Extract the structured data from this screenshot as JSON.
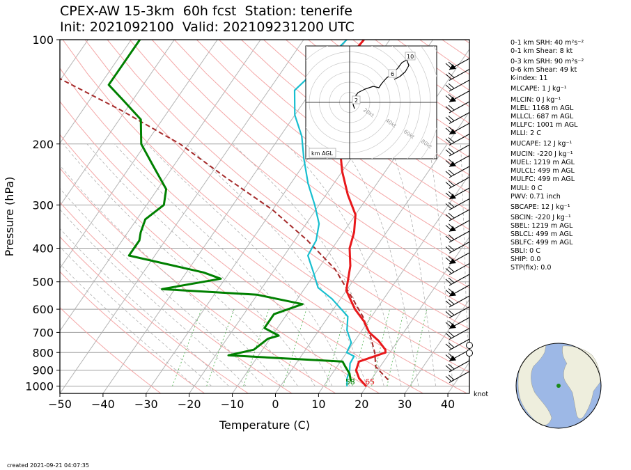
{
  "header": {
    "title_line1": "CPEX-AW 15-3km  60h fcst  Station: tenerife",
    "title_line2": "Init: 2021092100  Valid: 202109231200 UTC"
  },
  "axes": {
    "xlabel": "Temperature (C)",
    "ylabel": "Pressure (hPa)",
    "xticks": [
      "−50",
      "−40",
      "−30",
      "−20",
      "−10",
      "0",
      "10",
      "20",
      "30",
      "40"
    ],
    "xtick_values": [
      -50,
      -40,
      -30,
      -20,
      -10,
      0,
      10,
      20,
      30,
      40
    ],
    "yticks": [
      "100",
      "200",
      "300",
      "400",
      "500",
      "600",
      "700",
      "800",
      "900",
      "1000"
    ],
    "ytick_values": [
      100,
      200,
      300,
      400,
      500,
      600,
      700,
      800,
      900,
      1000
    ],
    "wind_unit": "knot"
  },
  "hodograph": {
    "unit_label": "km AGL",
    "ring_labels": [
      "20kt",
      "40kt",
      "60kt",
      "80kt"
    ],
    "height_marks": [
      "2",
      "6",
      "10"
    ]
  },
  "indices": [
    "0-1 km SRH: 40 m²s⁻²",
    "0-1 km Shear: 8 kt",
    "0-3 km SRH: 90 m²s⁻²",
    "0-6 km Shear: 49 kt",
    "K-index: 11",
    "MLCAPE: 1 J kg⁻¹",
    "MLCIN: 0 J kg⁻¹",
    "MLEL: 1168 m AGL",
    "MLLCL: 687 m AGL",
    "MLLFC: 1001 m AGL",
    "MLLI: 2 C",
    "MUCAPE: 12 J kg⁻¹",
    "MUCIN: -220 J kg⁻¹",
    "MUEL: 1219 m AGL",
    "MULCL: 499 m AGL",
    "MULFC: 499 m AGL",
    "MULI: 0 C",
    "PWV: 0.71 inch",
    "SBCAPE: 12 J kg⁻¹",
    "SBCIN: -220 J kg⁻¹",
    "SBEL: 1219 m AGL",
    "SBLCL: 499 m AGL",
    "SBLFC: 499 m AGL",
    "SBLI: 0 C",
    "SHIP: 0.0",
    "STP(fix): 0.0"
  ],
  "footer": {
    "created": "created 2021-09-21 04:07:35"
  },
  "colors": {
    "temperature": "#e8181b",
    "dewpoint": "#008000",
    "virtual_temp": "#17becf",
    "parcel": "#a52a2a",
    "dry_adiabat": "#f4a6a6",
    "moist_adiabat": "#b0b0b0",
    "mixing_ratio": "#5cb85c",
    "globe_ocean": "#9db8e6",
    "globe_land": "#eeeedd",
    "station_marker": "#1a8a1a"
  },
  "chart_data": {
    "type": "line",
    "title": "CPEX-AW 15-3km  60h fcst  Station: tenerife",
    "xlabel": "Temperature (C)",
    "ylabel": "Pressure (hPa)",
    "xlim": [
      -50,
      45
    ],
    "ylim": [
      1050,
      100
    ],
    "y_scale": "log",
    "skew": true,
    "series": [
      {
        "name": "temperature",
        "points": [
          [
            20,
            1003
          ],
          [
            17,
            950
          ],
          [
            15,
            900
          ],
          [
            14.3,
            850
          ],
          [
            19,
            800
          ],
          [
            18.5,
            785
          ],
          [
            15.5,
            740
          ],
          [
            12,
            700
          ],
          [
            9,
            650
          ],
          [
            5,
            600
          ],
          [
            0,
            530
          ],
          [
            -3,
            450
          ],
          [
            -6,
            400
          ],
          [
            -7.5,
            360
          ],
          [
            -10,
            320
          ],
          [
            -15,
            280
          ],
          [
            -20,
            240
          ],
          [
            -25,
            200
          ],
          [
            -30,
            170
          ],
          [
            -35,
            140
          ],
          [
            -37,
            120
          ],
          [
            -36,
            100
          ]
        ]
      },
      {
        "name": "dewpoint",
        "points": [
          [
            15.6,
            970
          ],
          [
            14,
            920
          ],
          [
            12,
            880
          ],
          [
            10.5,
            850
          ],
          [
            -17,
            815
          ],
          [
            -12,
            785
          ],
          [
            -10.5,
            730
          ],
          [
            -8.5,
            715
          ],
          [
            -13,
            680
          ],
          [
            -13,
            620
          ],
          [
            -8,
            580
          ],
          [
            -20,
            545
          ],
          [
            -43,
            525
          ],
          [
            -31,
            490
          ],
          [
            -36,
            470
          ],
          [
            -56,
            420
          ],
          [
            -56,
            380
          ],
          [
            -57,
            360
          ],
          [
            -58,
            330
          ],
          [
            -56,
            300
          ],
          [
            -58,
            270
          ],
          [
            -65,
            230
          ],
          [
            -71,
            200
          ],
          [
            -75,
            170
          ],
          [
            -82,
            150
          ],
          [
            -88,
            135
          ],
          [
            -88,
            115
          ],
          [
            -88,
            100
          ]
        ]
      },
      {
        "name": "virtual temperature",
        "points": [
          [
            15.5,
            1003
          ],
          [
            14.2,
            950
          ],
          [
            13.5,
            900
          ],
          [
            12.5,
            860
          ],
          [
            12.3,
            820
          ],
          [
            10,
            800
          ],
          [
            9.5,
            750
          ],
          [
            6.5,
            690
          ],
          [
            4.5,
            630
          ],
          [
            -2,
            560
          ],
          [
            -7,
            520
          ],
          [
            -10.5,
            470
          ],
          [
            -14.5,
            420
          ],
          [
            -15,
            380
          ],
          [
            -17,
            340
          ],
          [
            -21,
            300
          ],
          [
            -26,
            260
          ],
          [
            -31,
            220
          ],
          [
            -35,
            190
          ],
          [
            -40,
            165
          ],
          [
            -44,
            140
          ],
          [
            -42,
            120
          ],
          [
            -40,
            100
          ]
        ]
      },
      {
        "name": "parcel",
        "points": [
          [
            24,
            960
          ],
          [
            19,
            880
          ],
          [
            16.5,
            800
          ],
          [
            13,
            720
          ],
          [
            8,
            630
          ],
          [
            2,
            550
          ],
          [
            -6,
            460
          ],
          [
            -17,
            380
          ],
          [
            -30,
            310
          ],
          [
            -46,
            250
          ],
          [
            -62,
            200
          ],
          [
            -81,
            160
          ],
          [
            -100,
            130
          ],
          [
            -120,
            106
          ]
        ]
      }
    ],
    "surface_labels": [
      {
        "series": "dewpoint",
        "text": "58"
      },
      {
        "series": "temperature",
        "text": "65"
      }
    ]
  }
}
